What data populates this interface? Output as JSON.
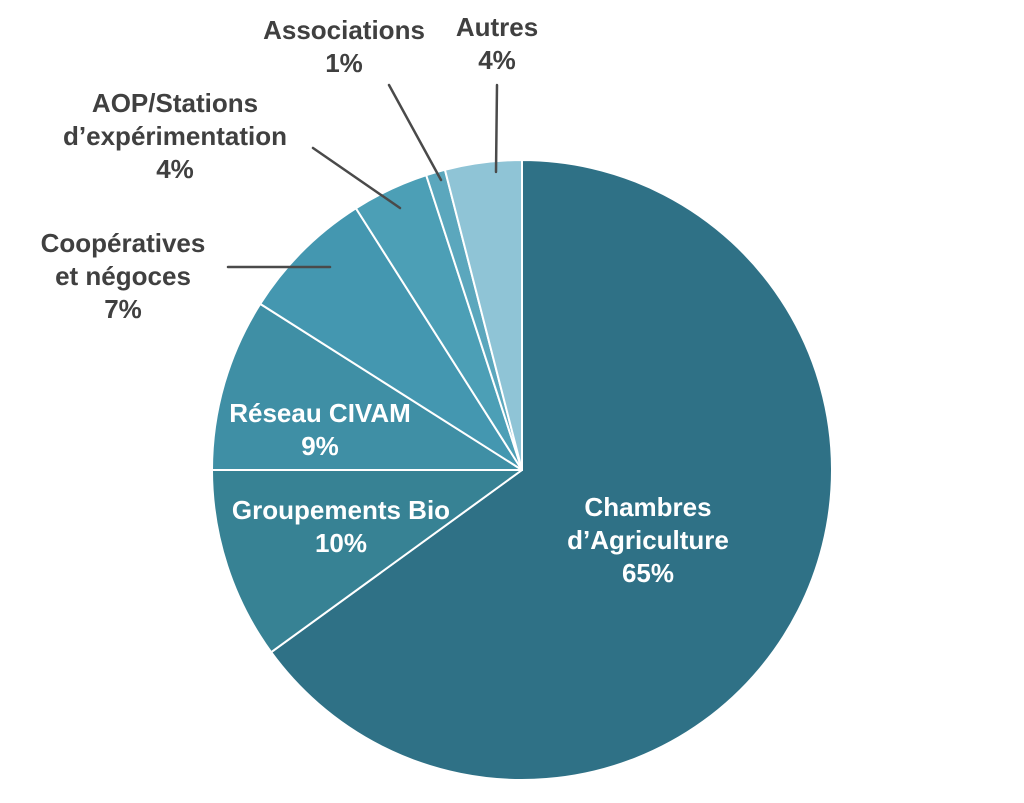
{
  "colors": {
    "background": "#FFFFFF",
    "text": "#404040",
    "inside_label": "#FFFFFF",
    "leader_line": "#4A4A4A",
    "slice_border": "#FFFFFF"
  },
  "chart_data": {
    "type": "pie",
    "title": "",
    "start_angle_deg": 0,
    "direction": "clockwise",
    "legend": "none",
    "label_style": "category name + percentage",
    "slices": [
      {
        "label": "Chambres d’Agriculture",
        "lines": [
          "Chambres",
          "d’Agriculture"
        ],
        "value": 65,
        "pct": "65%",
        "color": "#2F7186",
        "label_placement": "inside"
      },
      {
        "label": "Groupements Bio",
        "lines": [
          "Groupements Bio"
        ],
        "value": 10,
        "pct": "10%",
        "color": "#378294",
        "label_placement": "inside"
      },
      {
        "label": "Réseau CIVAM",
        "lines": [
          "Réseau CIVAM"
        ],
        "value": 9,
        "pct": "9%",
        "color": "#3F8FA5",
        "label_placement": "inside"
      },
      {
        "label": "Coopératives et négoces",
        "lines": [
          "Coopératives",
          "et négoces"
        ],
        "value": 7,
        "pct": "7%",
        "color": "#4497B0",
        "label_placement": "outside"
      },
      {
        "label": "AOP/Stations d’expérimentation",
        "lines": [
          "AOP/Stations",
          "d’expérimentation"
        ],
        "value": 4,
        "pct": "4%",
        "color": "#4C9FB6",
        "label_placement": "outside"
      },
      {
        "label": "Associations",
        "lines": [
          "Associations"
        ],
        "value": 1,
        "pct": "1%",
        "color": "#5BA7BD",
        "label_placement": "outside"
      },
      {
        "label": "Autres",
        "lines": [
          "Autres"
        ],
        "value": 4,
        "pct": "4%",
        "color": "#8FC4D6",
        "label_placement": "outside"
      }
    ]
  }
}
